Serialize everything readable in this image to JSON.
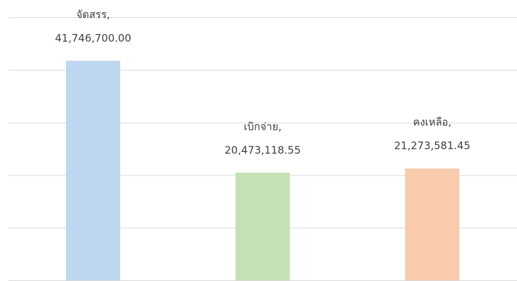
{
  "chart_data": {
    "type": "bar",
    "categories": [
      "จัดสรร,",
      "เบิกจ่าย,",
      "คงเหลือ,"
    ],
    "values": [
      41746700.0,
      20473118.55,
      21273581.45
    ],
    "value_labels": [
      "41,746,700.00",
      "20,473,118.55",
      "21,273,581.45"
    ],
    "colors": [
      "#bdd7ee",
      "#c5e0b4",
      "#f8cbad"
    ],
    "ylim": [
      0,
      50000000
    ],
    "yticks": [
      0,
      10000000,
      20000000,
      30000000,
      40000000,
      50000000
    ],
    "grid": true
  }
}
